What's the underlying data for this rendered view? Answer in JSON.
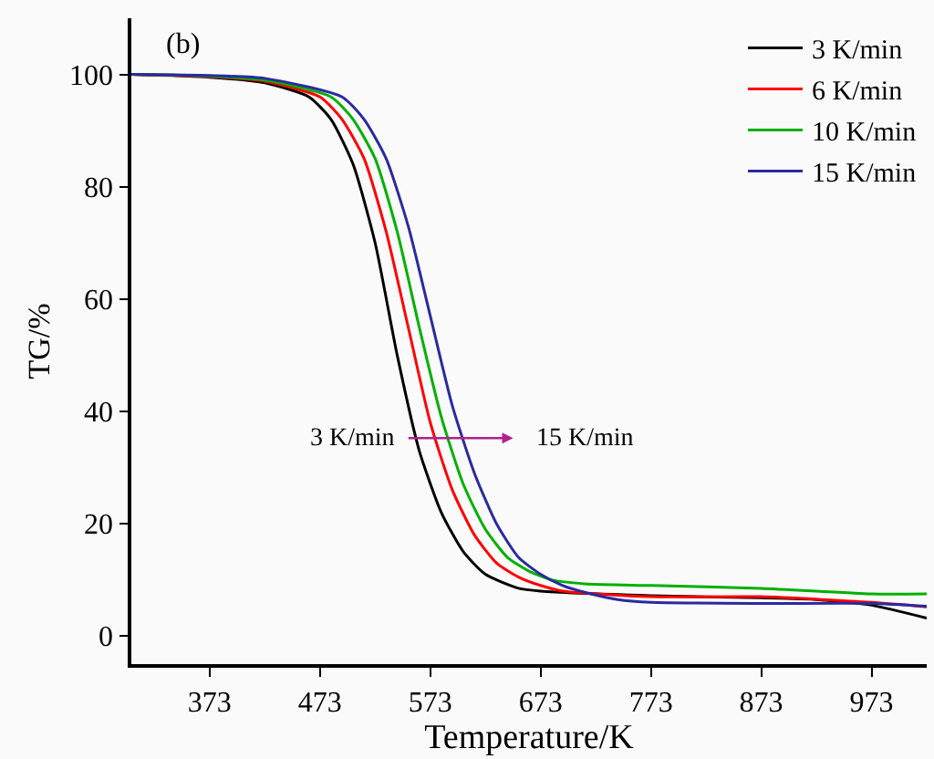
{
  "chart_data": {
    "type": "line",
    "xlabel": "Temperature/K",
    "ylabel": "TG/%",
    "xlim": [
      302,
      1023
    ],
    "ylim": [
      -5,
      110
    ],
    "xticks": [
      373,
      473,
      573,
      673,
      773,
      873,
      973
    ],
    "yticks": [
      0,
      20,
      40,
      60,
      80,
      100
    ],
    "legend": "top right",
    "marker": "none",
    "line_style": "solid",
    "annotations": [
      "(b)",
      "3 K/min",
      "15 K/min"
    ],
    "series": [
      {
        "name": "3 K/min",
        "color": "#000000",
        "x": [
          302,
          373,
          423,
          463,
          483,
          503,
          523,
          543,
          563,
          583,
          603,
          623,
          653,
          673,
          773,
          873,
          923,
          973,
          1023
        ],
        "values": [
          100,
          99.5,
          98.5,
          96,
          92,
          84,
          70,
          50,
          33,
          22,
          15,
          11,
          8.5,
          8,
          7.2,
          6.8,
          6.5,
          5.5,
          3.2
        ]
      },
      {
        "name": "6 K/min",
        "color": "#ff0000",
        "x": [
          302,
          373,
          423,
          473,
          493,
          513,
          533,
          553,
          573,
          593,
          613,
          633,
          653,
          673,
          693,
          773,
          873,
          973,
          1023
        ],
        "values": [
          100,
          99.6,
          98.8,
          96,
          92,
          85,
          72,
          55,
          38,
          26,
          18,
          13,
          10.5,
          9,
          8,
          7,
          7,
          6,
          5.2
        ]
      },
      {
        "name": "10 K/min",
        "color": "#00b000",
        "x": [
          302,
          373,
          423,
          483,
          503,
          523,
          543,
          563,
          583,
          603,
          623,
          643,
          663,
          683,
          713,
          773,
          873,
          973,
          1023
        ],
        "values": [
          100,
          99.7,
          99,
          96,
          92,
          85,
          72,
          55,
          39,
          27,
          19,
          14,
          11.5,
          10,
          9.3,
          9,
          8.5,
          7.5,
          7.5
        ]
      },
      {
        "name": "15 K/min",
        "color": "#2a2aa0",
        "x": [
          302,
          373,
          423,
          493,
          513,
          533,
          553,
          573,
          593,
          613,
          633,
          653,
          673,
          693,
          713,
          743,
          773,
          873,
          973,
          1023
        ],
        "values": [
          100,
          99.8,
          99.3,
          96,
          92,
          85,
          73,
          57,
          41,
          29,
          20,
          14,
          11,
          9,
          7.8,
          6.5,
          6,
          5.8,
          5.8,
          5.3
        ]
      }
    ]
  }
}
